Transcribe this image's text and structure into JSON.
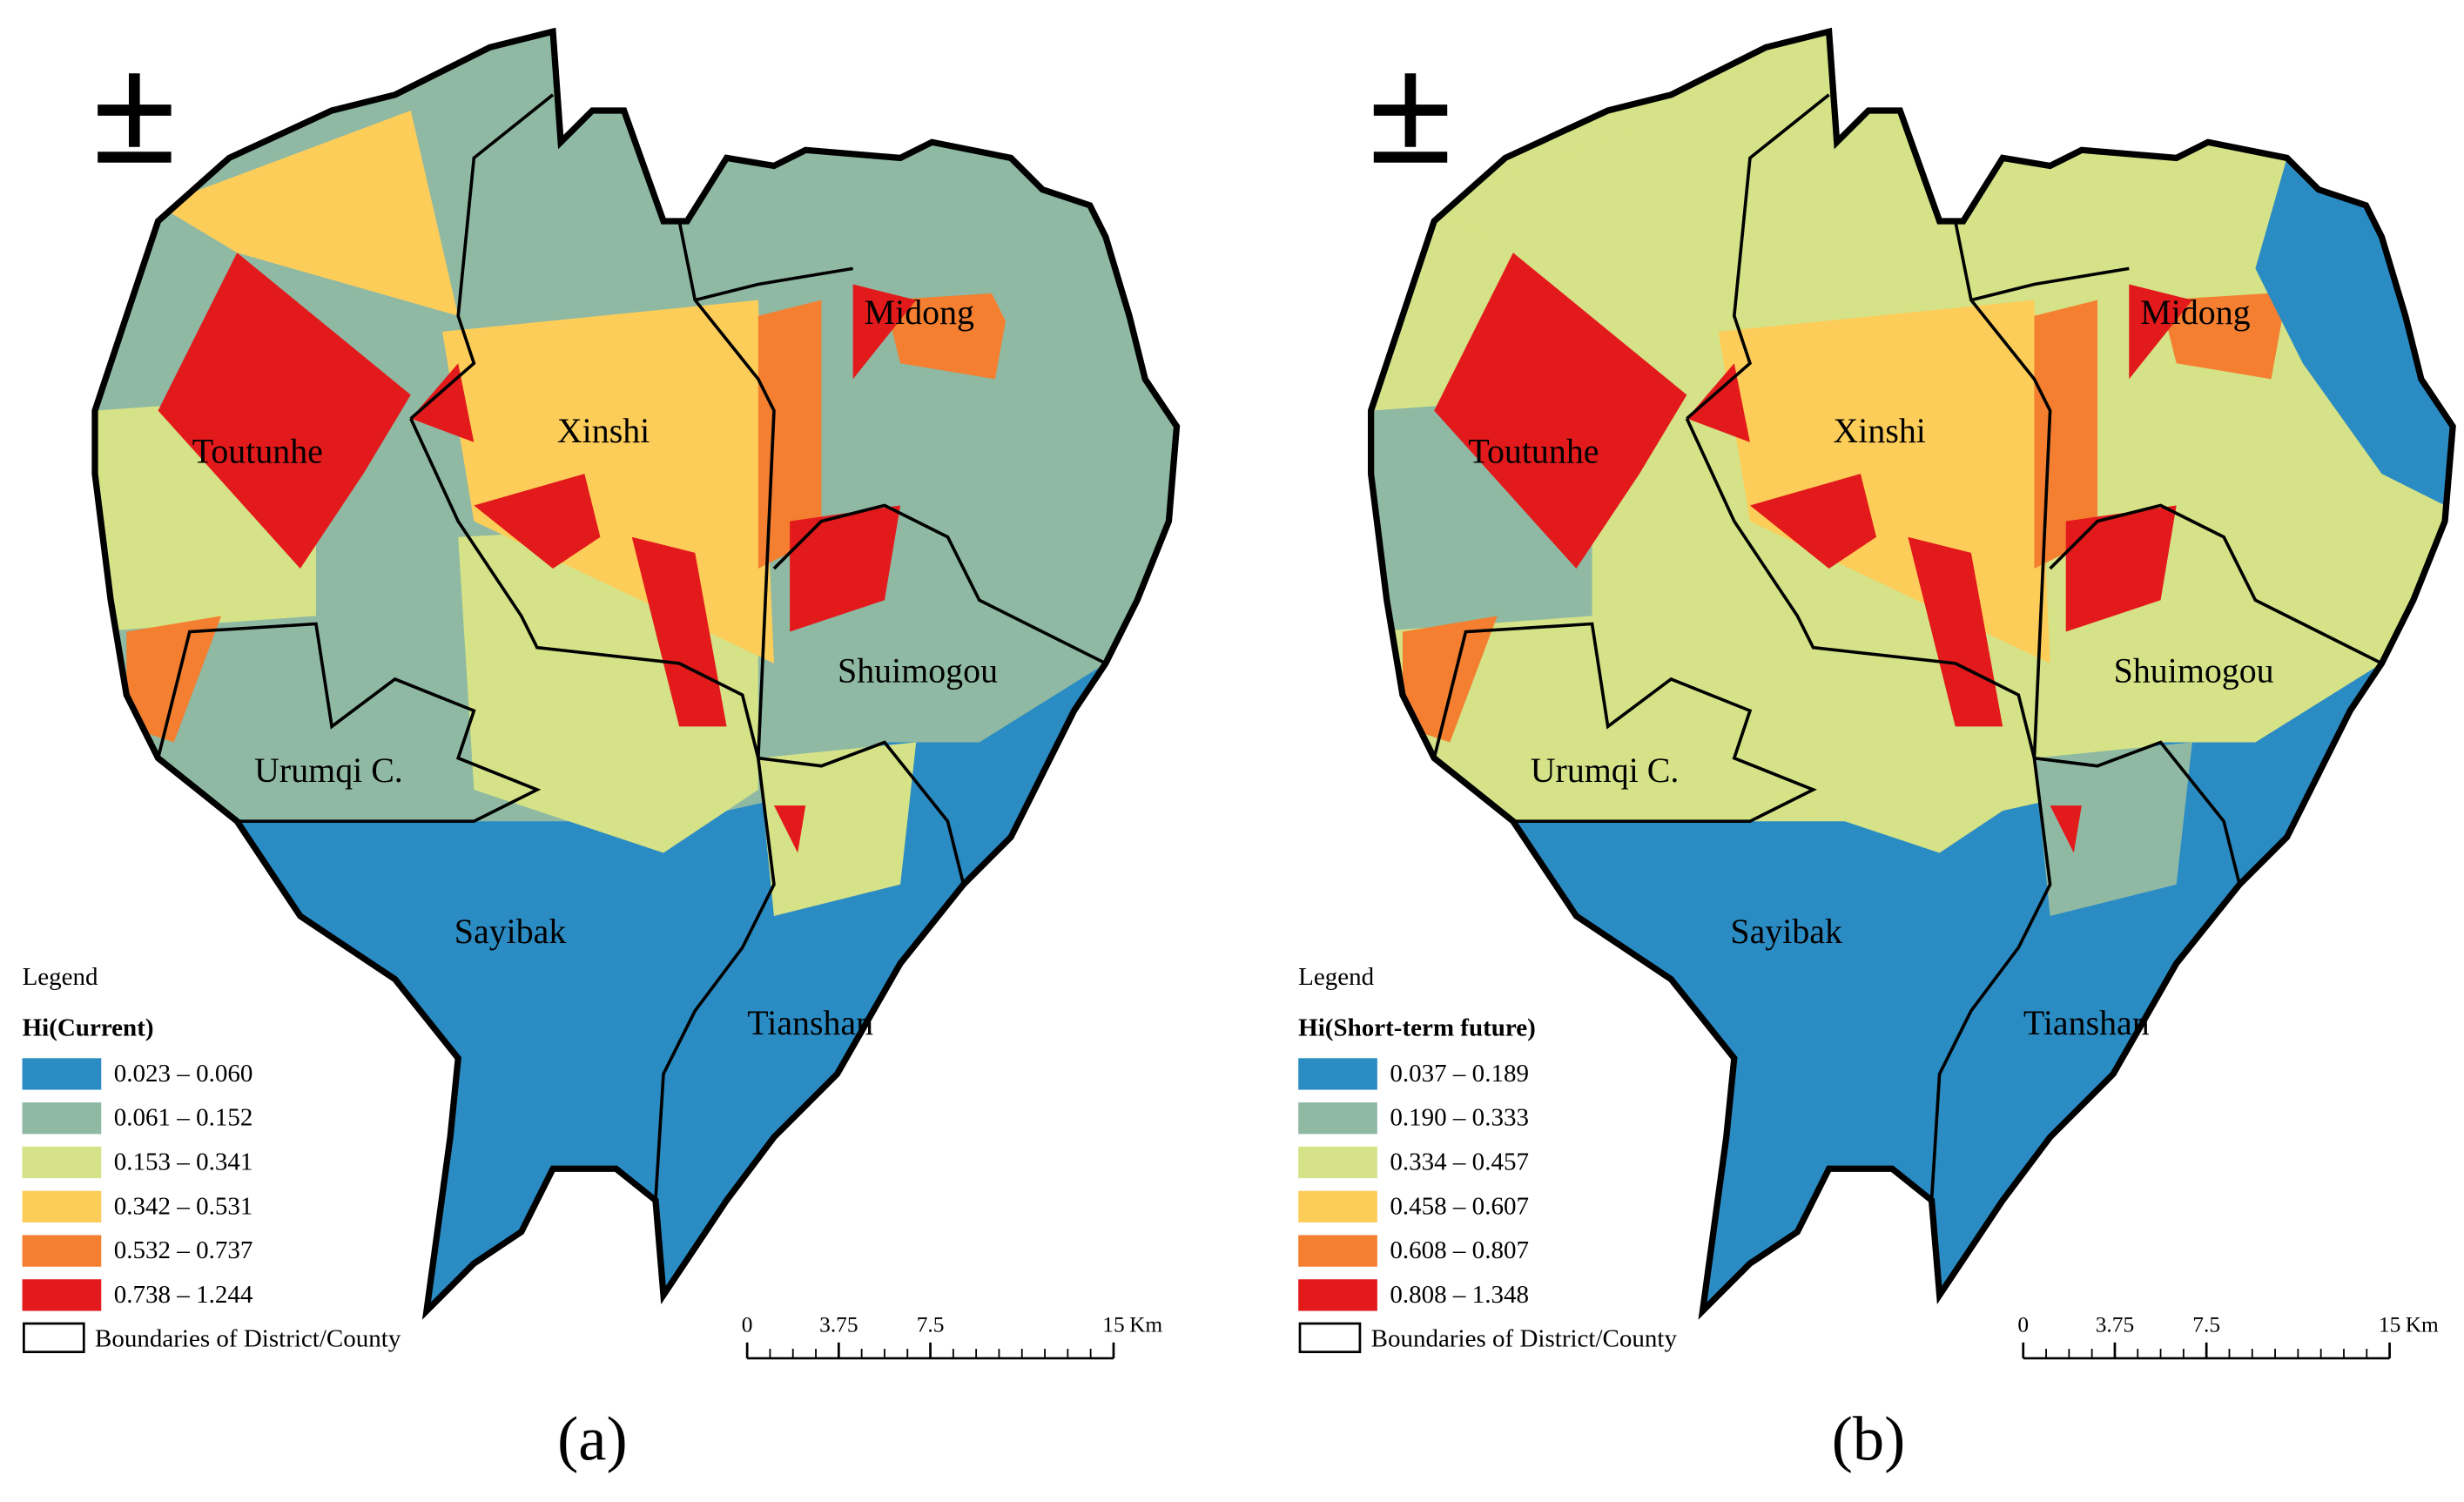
{
  "panels": [
    {
      "label": "(a)",
      "north": "±",
      "districts": [
        "Toutunhe",
        "Xinshi",
        "Midong",
        "Shuimogou",
        "Urumqi C.",
        "Sayibak",
        "Tianshan"
      ],
      "legend": {
        "heading": "Legend",
        "title": "Hi(Current)",
        "classes": [
          {
            "label": "0.023 – 0.060",
            "color": "#2b8cc4"
          },
          {
            "label": "0.061 – 0.152",
            "color": "#8fb9a3"
          },
          {
            "label": "0.153 – 0.341",
            "color": "#d5e287"
          },
          {
            "label": "0.342 – 0.531",
            "color": "#fdcd5a"
          },
          {
            "label": "0.532 – 0.737",
            "color": "#f47f30"
          },
          {
            "label": "0.738 – 1.244",
            "color": "#e31a1c"
          }
        ],
        "boundary": "Boundaries of District/County"
      },
      "scale_bar": {
        "ticks": [
          0,
          3.75,
          7.5,
          15
        ],
        "unit": "Km"
      }
    },
    {
      "label": "(b)",
      "north": "±",
      "districts": [
        "Toutunhe",
        "Xinshi",
        "Midong",
        "Shuimogou",
        "Urumqi C.",
        "Sayibak",
        "Tianshan"
      ],
      "legend": {
        "heading": "Legend",
        "title": "Hi(Short-term future)",
        "classes": [
          {
            "label": "0.037 – 0.189",
            "color": "#2b8cc4"
          },
          {
            "label": "0.190 – 0.333",
            "color": "#8fb9a3"
          },
          {
            "label": "0.334 – 0.457",
            "color": "#d5e287"
          },
          {
            "label": "0.458 – 0.607",
            "color": "#fdcd5a"
          },
          {
            "label": "0.608 – 0.807",
            "color": "#f47f30"
          },
          {
            "label": "0.808 – 1.348",
            "color": "#e31a1c"
          }
        ],
        "boundary": "Boundaries of District/County"
      },
      "scale_bar": {
        "ticks": [
          0,
          3.75,
          7.5,
          15
        ],
        "unit": "Km"
      }
    }
  ]
}
